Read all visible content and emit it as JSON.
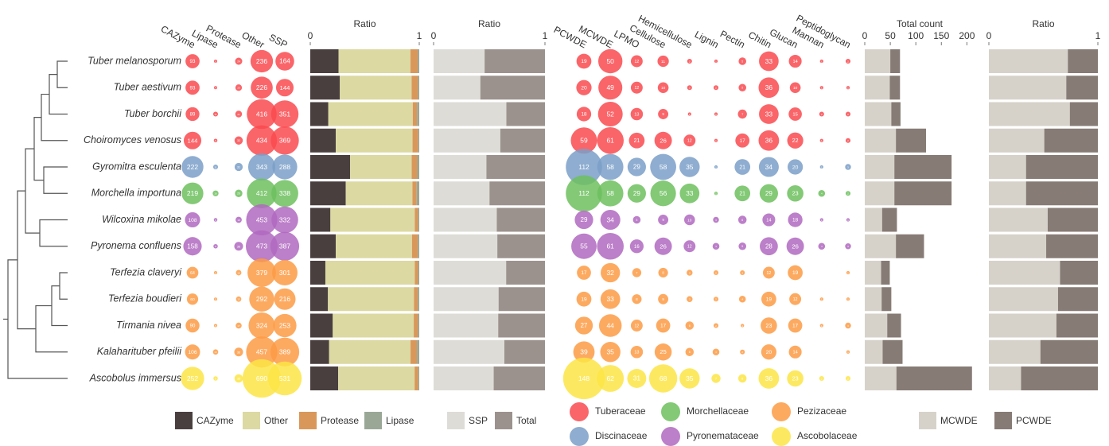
{
  "species": [
    "Tuber melanosporum",
    "Tuber aestivum",
    "Tuber borchii",
    "Choiromyces venosus",
    "Gyromitra esculenta",
    "Morchella importuna",
    "Wilcoxina mikolae",
    "Pyronema confluens",
    "Terfezia claveryi",
    "Terfezia boudieri",
    "Tirmania nivea",
    "Kalaharituber pfeilii",
    "Ascobolus immersus"
  ],
  "families": [
    {
      "name": "Tuberaceae",
      "color": "#f94a4f"
    },
    {
      "name": "Morchellaceae",
      "color": "#6dbf5e"
    },
    {
      "name": "Pezizaceae",
      "color": "#fd9b45"
    },
    {
      "name": "Discinaceae",
      "color": "#7a9fc8"
    },
    {
      "name": "Pyronemataceae",
      "color": "#b068bf"
    },
    {
      "name": "Ascobolaceae",
      "color": "#fbe545"
    }
  ],
  "row_family": [
    "Tuberaceae",
    "Tuberaceae",
    "Tuberaceae",
    "Tuberaceae",
    "Discinaceae",
    "Morchellaceae",
    "Pyronemataceae",
    "Pyronemataceae",
    "Pezizaceae",
    "Pezizaceae",
    "Pezizaceae",
    "Pezizaceae",
    "Ascobolaceae"
  ],
  "chart_data": [
    {
      "type": "bubble",
      "columns": [
        "CAZyme",
        "Lipase",
        "Protease",
        "Other",
        "SSP"
      ],
      "values": [
        [
          93,
          5,
          24,
          236,
          164
        ],
        [
          93,
          4,
          20,
          226,
          144
        ],
        [
          89,
          11,
          21,
          416,
          351
        ],
        [
          144,
          6,
          32,
          434,
          369
        ],
        [
          222,
          11,
          31,
          343,
          288
        ],
        [
          219,
          16,
          26,
          412,
          338
        ],
        [
          108,
          6,
          18,
          453,
          332
        ],
        [
          158,
          9,
          36,
          473,
          387
        ],
        [
          64,
          5,
          14,
          379,
          301
        ],
        [
          60,
          5,
          13,
          292,
          216
        ],
        [
          90,
          5,
          17,
          324,
          253
        ],
        [
          106,
          13,
          36,
          457,
          389
        ],
        [
          252,
          9,
          33,
          690,
          531
        ]
      ]
    },
    {
      "type": "ratio",
      "source": 0,
      "xlabel": "Ratio",
      "xlim": [
        0,
        1
      ],
      "xticks": [
        0,
        1
      ],
      "series": [
        {
          "name": "CAZyme",
          "color": "#4a3f3f"
        },
        {
          "name": "Other",
          "color": "#dcd9a2"
        },
        {
          "name": "Protease",
          "color": "#d9985a"
        },
        {
          "name": "Lipase",
          "color": "#9aa797"
        }
      ]
    },
    {
      "type": "ratio",
      "source": 0,
      "xlabel": "Ratio",
      "xlim": [
        0,
        1
      ],
      "xticks": [
        0,
        1
      ],
      "series": [
        {
          "name": "SSP",
          "color": "#dedcd7"
        },
        {
          "name": "Total",
          "color": "#9c928d"
        }
      ]
    },
    {
      "type": "bubble",
      "columns": [
        "PCWDE",
        "MCWDE",
        "LPMO",
        "Cellulose",
        "Hemicellulose",
        "Lignin",
        "Pectin",
        "Chitin",
        "Glucan",
        "Mannan",
        "Peptidoglycan"
      ],
      "values": [
        [
          19,
          50,
          12,
          11,
          2,
          1,
          5,
          33,
          14,
          1,
          2
        ],
        [
          20,
          49,
          12,
          10,
          2,
          2,
          5,
          36,
          10,
          1,
          1
        ],
        [
          18,
          52,
          13,
          9,
          1,
          1,
          7,
          33,
          15,
          2,
          2
        ],
        [
          59,
          61,
          21,
          26,
          12,
          1,
          17,
          36,
          22,
          1,
          2
        ],
        [
          112,
          58,
          29,
          58,
          35,
          1,
          21,
          34,
          20,
          1,
          3
        ],
        [
          112,
          58,
          29,
          56,
          33,
          1,
          21,
          29,
          23,
          4,
          2
        ],
        [
          29,
          34,
          5,
          9,
          10,
          3,
          6,
          14,
          18,
          1,
          1
        ],
        [
          55,
          61,
          16,
          26,
          12,
          4,
          5,
          28,
          26,
          4,
          3
        ],
        [
          17,
          32,
          7,
          8,
          3,
          2,
          2,
          12,
          19,
          null,
          1
        ],
        [
          19,
          33,
          8,
          9,
          3,
          2,
          4,
          19,
          12,
          1,
          1
        ],
        [
          27,
          44,
          12,
          17,
          6,
          2,
          1,
          23,
          17,
          1,
          3
        ],
        [
          39,
          35,
          13,
          25,
          6,
          4,
          2,
          20,
          14,
          null,
          1
        ],
        [
          148,
          62,
          31,
          68,
          35,
          7,
          6,
          36,
          23,
          2,
          2
        ]
      ]
    },
    {
      "type": "stacked",
      "source": 3,
      "xlabel": "Total count",
      "xlim": [
        0,
        215
      ],
      "xticks": [
        0,
        50,
        100,
        150,
        200
      ],
      "series": [
        {
          "name": "MCWDE",
          "color": "#d6d2ca"
        },
        {
          "name": "PCWDE",
          "color": "#877b75"
        }
      ]
    },
    {
      "type": "ratio",
      "source": 3,
      "xlabel": "Ratio",
      "xlim": [
        0,
        1
      ],
      "xticks": [
        0,
        1
      ],
      "series": [
        {
          "name": "MCWDE",
          "color": "#d6d2ca"
        },
        {
          "name": "PCWDE",
          "color": "#877b75"
        }
      ]
    }
  ]
}
